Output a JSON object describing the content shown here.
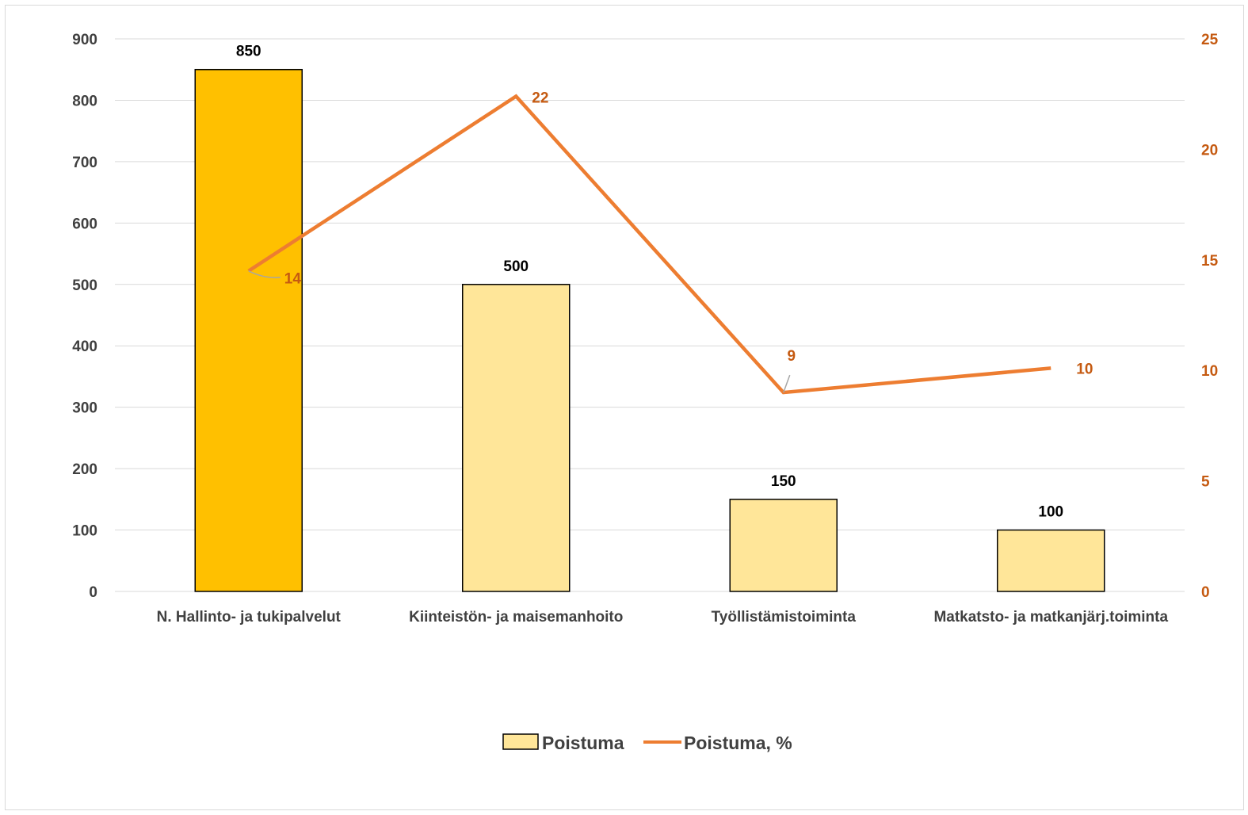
{
  "chart_data": {
    "type": "bar",
    "categories": [
      "N. Hallinto- ja tukipalvelut",
      "Kiinteistön- ja maisemanhoito",
      "Työllistämistoiminta",
      "Matkatsto- ja matkanjärj.toiminta"
    ],
    "series": [
      {
        "name": "Poistuma",
        "type": "bar",
        "axis": "left",
        "values": [
          850,
          500,
          150,
          100
        ],
        "labels": [
          "850",
          "500",
          "150",
          "100"
        ],
        "colors": [
          "#ffc000",
          "#ffe699",
          "#ffe699",
          "#ffe699"
        ]
      },
      {
        "name": "Poistuma, %",
        "type": "line",
        "axis": "right",
        "values": [
          14.5,
          22.4,
          9.0,
          10.1
        ],
        "labels": [
          "14",
          "22",
          "9",
          "10"
        ],
        "color": "#ed7d31"
      }
    ],
    "left_axis": {
      "ylim": [
        0,
        900
      ],
      "ticks": [
        "0",
        "100",
        "200",
        "300",
        "400",
        "500",
        "600",
        "700",
        "800",
        "900"
      ]
    },
    "right_axis": {
      "ylim": [
        0,
        25
      ],
      "ticks": [
        "0",
        "5",
        "10",
        "15",
        "20",
        "25"
      ]
    },
    "grid": true,
    "legend": "bottom",
    "colors": {
      "left_tick": "#404040",
      "right_tick": "#c55a11",
      "bar_label": "#000000",
      "line_label": "#c55a11",
      "grid": "#d9d9d9",
      "bar_border": "#000000"
    }
  }
}
